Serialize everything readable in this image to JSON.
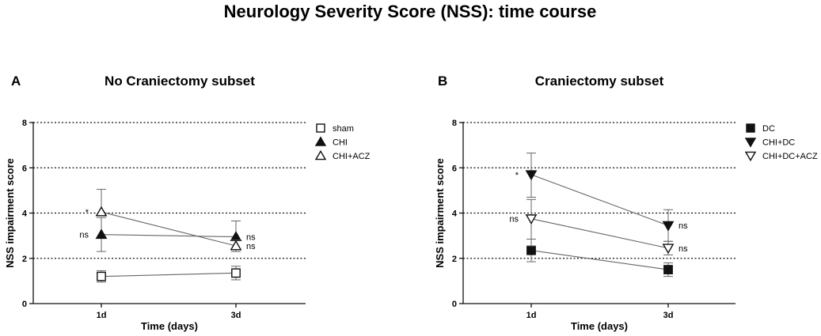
{
  "title": "Neurology Severity Score (NSS): time course",
  "chart_data": [
    {
      "panel": "A",
      "type": "line",
      "title": "No Craniectomy subset",
      "xlabel": "Time (days)",
      "ylabel": "NSS impairment score",
      "categories": [
        "1d",
        "3d"
      ],
      "ylim": [
        0,
        8
      ],
      "yticks": [
        0,
        2,
        4,
        6,
        8
      ],
      "grid_lines": [
        2,
        4,
        6,
        8
      ],
      "legend_position": "top-right",
      "series": [
        {
          "name": "sham",
          "marker": "square-open",
          "values": [
            1.2,
            1.35
          ],
          "err_low": [
            0.25,
            0.3
          ],
          "err_high": [
            0.25,
            0.3
          ],
          "labels": [
            "",
            ""
          ],
          "x_offset": 0
        },
        {
          "name": "CHI",
          "marker": "triangle-up-filled",
          "values": [
            3.05,
            2.95
          ],
          "err_low": [
            0.75,
            0
          ],
          "err_high": [
            0.75,
            0.7
          ],
          "labels": [
            "ns",
            "ns"
          ],
          "x_offset": 0
        },
        {
          "name": "CHI+ACZ",
          "marker": "triangle-up-open",
          "values": [
            4.05,
            2.55
          ],
          "err_low": [
            0,
            0.25
          ],
          "err_high": [
            1.0,
            0.25
          ],
          "labels": [
            "*",
            "ns"
          ],
          "x_offset": 0
        }
      ]
    },
    {
      "panel": "B",
      "type": "line",
      "title": "Craniectomy subset",
      "xlabel": "Time (days)",
      "ylabel": "NSS impairment score",
      "categories": [
        "1d",
        "3d"
      ],
      "ylim": [
        0,
        8
      ],
      "yticks": [
        0,
        2,
        4,
        6,
        8
      ],
      "grid_lines": [
        2,
        4,
        6,
        8
      ],
      "legend_position": "top-right",
      "series": [
        {
          "name": "DC",
          "marker": "square-filled",
          "values": [
            2.35,
            1.5
          ],
          "err_low": [
            0.5,
            0.3
          ],
          "err_high": [
            0.5,
            0.3
          ],
          "labels": [
            "",
            ""
          ],
          "x_offset": 0
        },
        {
          "name": "CHI+DC",
          "marker": "triangle-down-filled",
          "values": [
            5.7,
            3.45
          ],
          "err_low": [
            1.0,
            0.7
          ],
          "err_high": [
            0.95,
            0.7
          ],
          "labels": [
            "*",
            "ns"
          ],
          "x_offset": 0
        },
        {
          "name": "CHI+DC+ACZ",
          "marker": "triangle-down-open",
          "values": [
            3.75,
            2.45
          ],
          "err_low": [
            1.2,
            0.3
          ],
          "err_high": [
            0.85,
            0.3
          ],
          "labels": [
            "ns",
            "ns"
          ],
          "x_offset": 0
        }
      ]
    }
  ]
}
